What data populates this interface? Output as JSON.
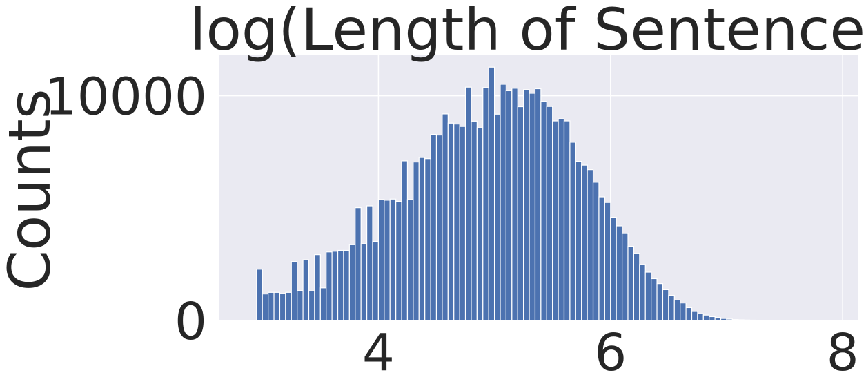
{
  "chart_data": {
    "type": "bar",
    "title": "log(Length of Sentence)",
    "xlabel": "",
    "ylabel": "Counts",
    "xlim": [
      2.63,
      8.13
    ],
    "ylim": [
      0,
      11800
    ],
    "x_ticks": [
      4,
      6,
      8
    ],
    "y_ticks": [
      0,
      10000
    ],
    "grid": true,
    "bins": {
      "start": 2.95,
      "width": 0.05,
      "counts": [
        2280,
        1180,
        1250,
        1250,
        1200,
        1250,
        2620,
        1330,
        2700,
        1310,
        2930,
        1450,
        3050,
        3080,
        3120,
        3120,
        3370,
        5020,
        3410,
        5100,
        3520,
        5380,
        5350,
        5400,
        5300,
        7100,
        5380,
        7050,
        7250,
        7200,
        8280,
        8250,
        9190,
        8780,
        8740,
        8630,
        10380,
        8870,
        8570,
        10360,
        11270,
        9180,
        10510,
        10220,
        10330,
        9510,
        10270,
        10110,
        10310,
        9750,
        9520,
        8880,
        8970,
        8880,
        7930,
        7080,
        6910,
        6710,
        6150,
        5500,
        5250,
        4590,
        4210,
        3870,
        3300,
        2970,
        2490,
        2150,
        1860,
        1640,
        1370,
        1120,
        910,
        780,
        570,
        400,
        300,
        240,
        170,
        130,
        90,
        60,
        40,
        30,
        20,
        15,
        10,
        8,
        5,
        4,
        3,
        2,
        1,
        1,
        0,
        0,
        0,
        0,
        0,
        0,
        0,
        0,
        0,
        0,
        0,
        0,
        0,
        0,
        0,
        0,
        0,
        0,
        0,
        0,
        0,
        0,
        0,
        0,
        0,
        0
      ]
    }
  },
  "colors": {
    "background": "#eaeaf2",
    "bar": "#4c72b0",
    "text": "#262626"
  }
}
